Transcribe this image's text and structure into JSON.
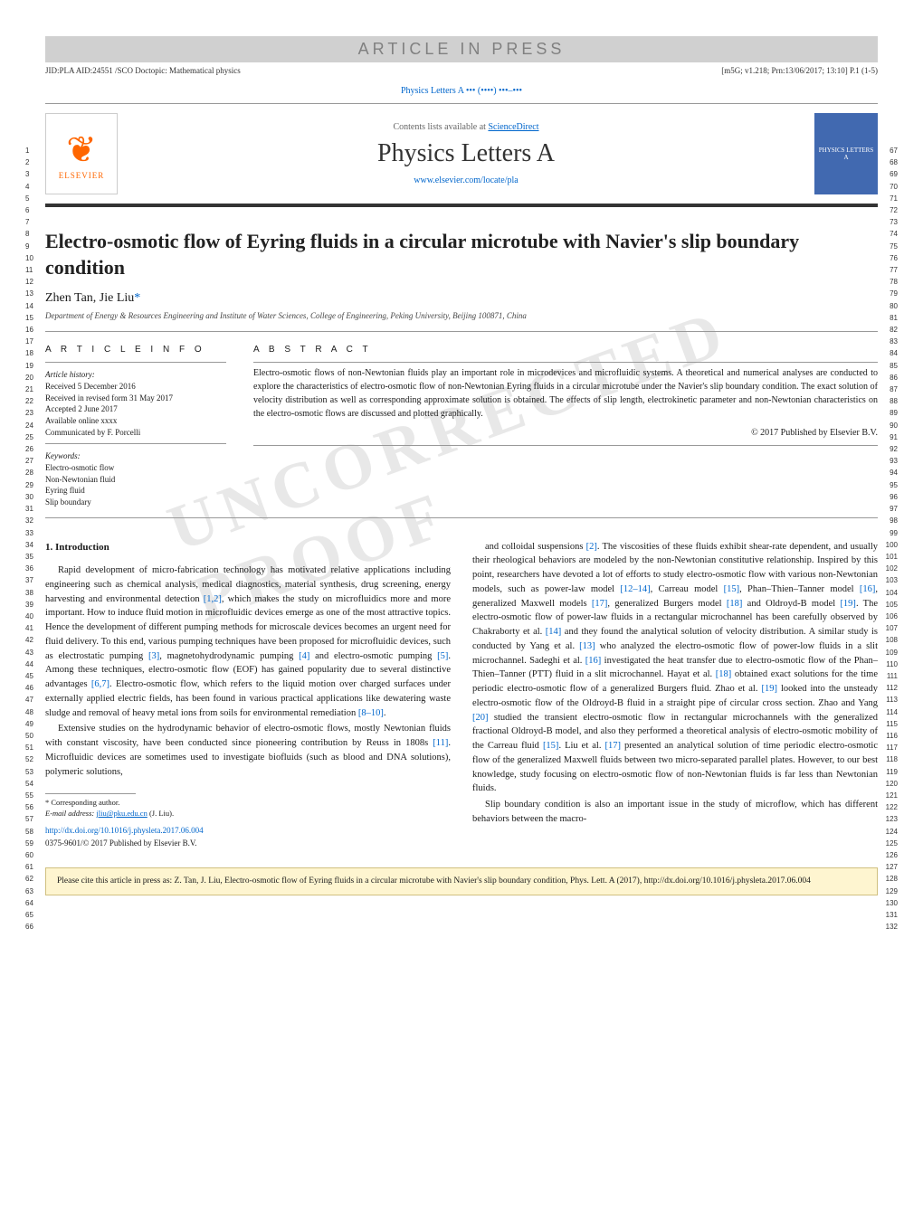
{
  "banner": "ARTICLE IN PRESS",
  "meta": {
    "left": "JID:PLA   AID:24551 /SCO   Doctopic: Mathematical physics",
    "right": "[m5G; v1.218; Prn:13/06/2017; 13:10] P.1 (1-5)"
  },
  "journal_ref": "Physics Letters A ••• (••••) •••–•••",
  "header": {
    "contents_prefix": "Contents lists available at ",
    "contents_link": "ScienceDirect",
    "journal_title": "Physics Letters A",
    "journal_url": "www.elsevier.com/locate/pla",
    "elsevier": "ELSEVIER",
    "cover_text": "PHYSICS LETTERS A"
  },
  "title": "Electro-osmotic flow of Eyring fluids in a circular microtube with Navier's slip boundary condition",
  "authors": {
    "names": "Zhen Tan, Jie Liu",
    "marker": "*"
  },
  "affiliation": "Department of Energy & Resources Engineering and Institute of Water Sciences, College of Engineering, Peking University, Beijing 100871, China",
  "article_info": {
    "heading": "A R T I C L E   I N F O",
    "history_label": "Article history:",
    "history": [
      "Received 5 December 2016",
      "Received in revised form 31 May 2017",
      "Accepted 2 June 2017",
      "Available online xxxx",
      "Communicated by F. Porcelli"
    ],
    "keywords_label": "Keywords:",
    "keywords": [
      "Electro-osmotic flow",
      "Non-Newtonian fluid",
      "Eyring fluid",
      "Slip boundary"
    ]
  },
  "abstract": {
    "heading": "A B S T R A C T",
    "text": "Electro-osmotic flows of non-Newtonian fluids play an important role in microdevices and microfluidic systems. A theoretical and numerical analyses are conducted to explore the characteristics of electro-osmotic flow of non-Newtonian Eyring fluids in a circular microtube under the Navier's slip boundary condition. The exact solution of velocity distribution as well as corresponding approximate solution is obtained. The effects of slip length, electrokinetic parameter and non-Newtonian characteristics on the electro-osmotic flows are discussed and plotted graphically.",
    "copyright": "© 2017 Published by Elsevier B.V."
  },
  "section1": {
    "heading": "1. Introduction",
    "p1": "Rapid development of micro-fabrication technology has motivated relative applications including engineering such as chemical analysis, medical diagnostics, material synthesis, drug screening, energy harvesting and environmental detection [1,2], which makes the study on microfluidics more and more important. How to induce fluid motion in microfluidic devices emerge as one of the most attractive topics. Hence the development of different pumping methods for microscale devices becomes an urgent need for fluid delivery. To this end, various pumping techniques have been proposed for microfluidic devices, such as electrostatic pumping [3], magnetohydrodynamic pumping [4] and electro-osmotic pumping [5]. Among these techniques, electro-osmotic flow (EOF) has gained popularity due to several distinctive advantages [6,7]. Electro-osmotic flow, which refers to the liquid motion over charged surfaces under externally applied electric fields, has been found in various practical applications like dewatering waste sludge and removal of heavy metal ions from soils for environmental remediation [8–10].",
    "p2": "Extensive studies on the hydrodynamic behavior of electro-osmotic flows, mostly Newtonian fluids with constant viscosity, have been conducted since pioneering contribution by Reuss in 1808s [11]. Microfluidic devices are sometimes used to investigate biofluids (such as blood and DNA solutions), polymeric solutions,",
    "p3": "and colloidal suspensions [2]. The viscosities of these fluids exhibit shear-rate dependent, and usually their rheological behaviors are modeled by the non-Newtonian constitutive relationship. Inspired by this point, researchers have devoted a lot of efforts to study electro-osmotic flow with various non-Newtonian models, such as power-law model [12–14], Carreau model [15], Phan–Thien–Tanner model [16], generalized Maxwell models [17], generalized Burgers model [18] and Oldroyd-B model [19]. The electro-osmotic flow of power-law fluids in a rectangular microchannel has been carefully observed by Chakraborty et al. [14] and they found the analytical solution of velocity distribution. A similar study is conducted by Yang et al. [13] who analyzed the electro-osmotic flow of power-low fluids in a slit microchannel. Sadeghi et al. [16] investigated the heat transfer due to electro-osmotic flow of the Phan–Thien–Tanner (PTT) fluid in a slit microchannel. Hayat et al. [18] obtained exact solutions for the time periodic electro-osmotic flow of a generalized Burgers fluid. Zhao et al. [19] looked into the unsteady electro-osmotic flow of the Oldroyd-B fluid in a straight pipe of circular cross section. Zhao and Yang [20] studied the transient electro-osmotic flow in rectangular microchannels with the generalized fractional Oldroyd-B model, and also they performed a theoretical analysis of electro-osmotic mobility of the Carreau fluid [15]. Liu et al. [17] presented an analytical solution of time periodic electro-osmotic flow of the generalized Maxwell fluids between two micro-separated parallel plates. However, to our best knowledge, study focusing on electro-osmotic flow of non-Newtonian fluids is far less than Newtonian fluids.",
    "p4": "Slip boundary condition is also an important issue in the study of microflow, which has different behaviors between the macro-"
  },
  "footnote": {
    "corresponding": "* Corresponding author.",
    "email_label": "E-mail address: ",
    "email": "jliu@pku.edu.cn",
    "email_suffix": " (J. Liu)."
  },
  "doi": "http://dx.doi.org/10.1016/j.physleta.2017.06.004",
  "issn": "0375-9601/© 2017 Published by Elsevier B.V.",
  "citation": "Please cite this article in press as: Z. Tan, J. Liu, Electro-osmotic flow of Eyring fluids in a circular microtube with Navier's slip boundary condition, Phys. Lett. A (2017), http://dx.doi.org/10.1016/j.physleta.2017.06.004",
  "line_numbers": {
    "left_start": 1,
    "left_end": 66,
    "right_start": 67,
    "right_end": 132
  },
  "watermark": "UNCORRECTED PROOF",
  "colors": {
    "link": "#0066cc",
    "banner_bg": "#d0d0d0",
    "banner_fg": "#808080",
    "elsevier": "#ff6600",
    "cover_bg": "#4169b0",
    "citation_bg": "#fef5d0",
    "citation_border": "#d0c080"
  }
}
